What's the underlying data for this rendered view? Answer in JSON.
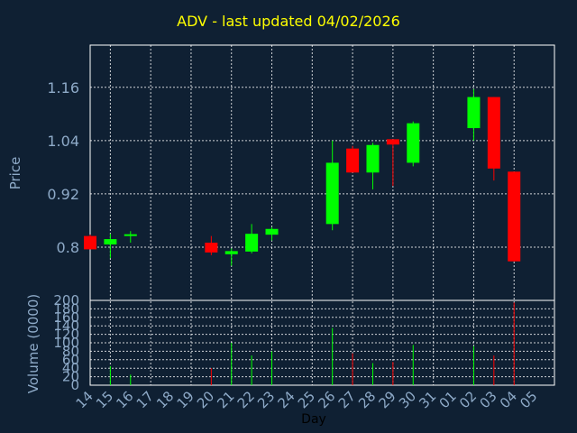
{
  "colors": {
    "background": "#0f2033",
    "title": "#ffff00",
    "axis_text": "#8eaac8",
    "grid": "#ffffff",
    "up": "#00ff00",
    "down": "#ff0000"
  },
  "chart_data": {
    "type": "candlestick",
    "title": "ADV - last updated 04/02/2026",
    "ylabel": "Price",
    "ylabel_volume": "Volume (0000)",
    "xlabel": "Day",
    "grid": true,
    "price_ylim": [
      0.68,
      1.255
    ],
    "price_ticks": [
      "0.8",
      "0.92",
      "1.04",
      "1.16"
    ],
    "volume_ylim": [
      0,
      200
    ],
    "volume_ticks": [
      "0",
      "20",
      "40",
      "60",
      "80",
      "100",
      "120",
      "140",
      "160",
      "180",
      "200"
    ],
    "x_ticks": [
      "14",
      "15",
      "16",
      "17",
      "18",
      "19",
      "20",
      "21",
      "22",
      "23",
      "24",
      "25",
      "26",
      "27",
      "28",
      "29",
      "30",
      "31",
      "01",
      "02",
      "03",
      "04",
      "05"
    ],
    "candles": [
      {
        "x": "14",
        "open": 0.825,
        "high": 0.828,
        "low": 0.795,
        "close": 0.795,
        "volume": 0
      },
      {
        "x": "15",
        "open": 0.806,
        "high": 0.83,
        "low": 0.775,
        "close": 0.818,
        "volume": 45
      },
      {
        "x": "16",
        "open": 0.826,
        "high": 0.836,
        "low": 0.81,
        "close": 0.829,
        "volume": 25
      },
      {
        "x": "20",
        "open": 0.81,
        "high": 0.825,
        "low": 0.782,
        "close": 0.788,
        "volume": 40
      },
      {
        "x": "21",
        "open": 0.784,
        "high": 0.797,
        "low": 0.758,
        "close": 0.791,
        "volume": 100
      },
      {
        "x": "22",
        "open": 0.79,
        "high": 0.852,
        "low": 0.786,
        "close": 0.83,
        "volume": 70
      },
      {
        "x": "23",
        "open": 0.828,
        "high": 0.845,
        "low": 0.815,
        "close": 0.841,
        "volume": 80
      },
      {
        "x": "26",
        "open": 0.852,
        "high": 1.04,
        "low": 0.838,
        "close": 0.99,
        "volume": 135
      },
      {
        "x": "27",
        "open": 1.022,
        "high": 1.028,
        "low": 0.968,
        "close": 0.968,
        "volume": 75
      },
      {
        "x": "28",
        "open": 0.968,
        "high": 1.035,
        "low": 0.93,
        "close": 1.03,
        "volume": 52
      },
      {
        "x": "29",
        "open": 1.043,
        "high": 1.043,
        "low": 0.938,
        "close": 1.031,
        "volume": 55
      },
      {
        "x": "30",
        "open": 0.99,
        "high": 1.083,
        "low": 0.982,
        "close": 1.079,
        "volume": 95
      },
      {
        "x": "02",
        "open": 1.068,
        "high": 1.156,
        "low": 1.04,
        "close": 1.138,
        "volume": 92
      },
      {
        "x": "03",
        "open": 1.138,
        "high": 1.138,
        "low": 0.95,
        "close": 0.977,
        "volume": 70
      },
      {
        "x": "04",
        "open": 0.97,
        "high": 0.97,
        "low": 0.768,
        "close": 0.768,
        "volume": 195
      }
    ]
  }
}
